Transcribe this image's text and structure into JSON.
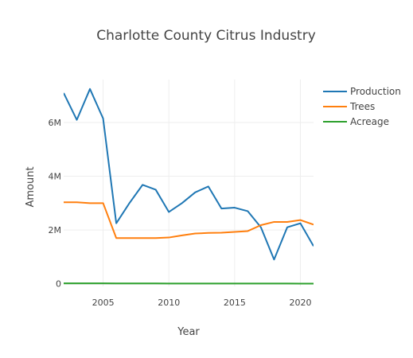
{
  "chart_data": {
    "type": "line",
    "title": "Charlotte County Citrus Industry",
    "xlabel": "Year",
    "ylabel": "Amount",
    "xlim": [
      2002,
      2021
    ],
    "ylim": [
      -100000,
      7600000
    ],
    "x_ticks": [
      {
        "value": 2005,
        "label": "2005"
      },
      {
        "value": 2010,
        "label": "2010"
      },
      {
        "value": 2015,
        "label": "2015"
      },
      {
        "value": 2020,
        "label": "2020"
      }
    ],
    "y_ticks": [
      {
        "value": 0,
        "label": "0"
      },
      {
        "value": 2000000,
        "label": "2M"
      },
      {
        "value": 4000000,
        "label": "4M"
      },
      {
        "value": 6000000,
        "label": "6M"
      }
    ],
    "grid": true,
    "legend_position": "top-right",
    "x": [
      2002,
      2003,
      2004,
      2005,
      2006,
      2007,
      2008,
      2009,
      2010,
      2011,
      2012,
      2013,
      2014,
      2015,
      2016,
      2017,
      2018,
      2019,
      2020,
      2021
    ],
    "series": [
      {
        "name": "Production",
        "color": "#1f77b4",
        "values": [
          7100000,
          6100000,
          7250000,
          6150000,
          2250000,
          3000000,
          3680000,
          3500000,
          2670000,
          3000000,
          3400000,
          3620000,
          2800000,
          2830000,
          2700000,
          2100000,
          900000,
          2100000,
          2250000,
          1400000
        ]
      },
      {
        "name": "Trees",
        "color": "#ff7f0e",
        "values": [
          3030000,
          3030000,
          3000000,
          3000000,
          1700000,
          1700000,
          1700000,
          1700000,
          1720000,
          1800000,
          1870000,
          1890000,
          1900000,
          1930000,
          1960000,
          2180000,
          2300000,
          2300000,
          2370000,
          2200000
        ]
      },
      {
        "name": "Acreage",
        "color": "#2ca02c",
        "values": [
          15000,
          15000,
          14000,
          14000,
          12000,
          11000,
          10000,
          10000,
          9000,
          9000,
          9000,
          8000,
          8000,
          7000,
          7000,
          6000,
          6000,
          6000,
          5000,
          5000
        ]
      }
    ]
  }
}
